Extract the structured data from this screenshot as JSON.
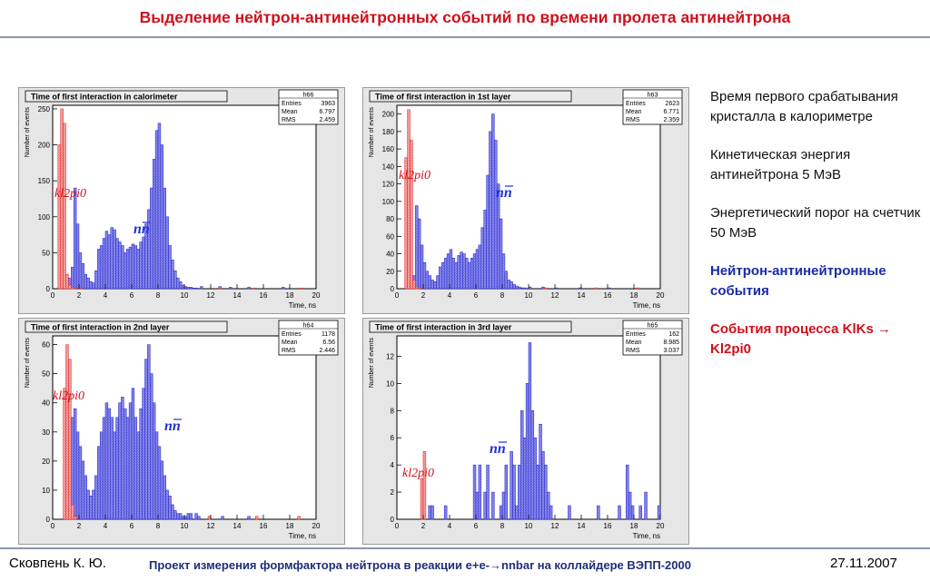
{
  "slide": {
    "title": "Выделение нейтрон-антинейтронных событий по времени пролета антинейтрона",
    "footer_author": "Сковпень К. Ю.",
    "footer_project": "Проект измерения формфактора нейтрона в реакции e+e-→nnbar на коллайдере ВЭПП-2000",
    "footer_date": "27.11.2007"
  },
  "colors": {
    "title_red": "#d0101c",
    "nn_blue": "#2030d8",
    "hist_blue_fill": "#8c8cf0",
    "hist_red_fill": "#f4a6a6",
    "panel_frame": "#c8c8c8"
  },
  "notes": [
    {
      "text": "Время первого срабатывания кристалла в калориметре",
      "style": "normal"
    },
    {
      "text": "Кинетическая энергия антинейтрона 5 МэВ",
      "style": "normal"
    },
    {
      "text": "Энергетический порог на счетчик 50 МэВ",
      "style": "normal"
    },
    {
      "text": "Нейтрон-антинейтронные события",
      "style": "blue"
    },
    {
      "text": "События процесса KlKs → Kl2pi0",
      "style": "red"
    }
  ],
  "chart_data": [
    {
      "type": "bar",
      "title": "Time of first interaction in calorimeter",
      "hist_name": "h66",
      "stats": [
        {
          "label": "Entries",
          "value": "3963"
        },
        {
          "label": "Mean",
          "value": "6.797"
        },
        {
          "label": "RMS",
          "value": "2.459"
        }
      ],
      "xlabel": "Time, ns",
      "ylabel": "Number of events",
      "xlim": [
        0,
        20
      ],
      "ylim": [
        0,
        255
      ],
      "yticks": [
        0,
        50,
        100,
        150,
        200,
        250
      ],
      "xticks": [
        0,
        2,
        4,
        6,
        8,
        10,
        12,
        14,
        16,
        18,
        20
      ],
      "bin_width": 0.2,
      "annotations": [
        {
          "text": "kl2pi0",
          "color": "red"
        },
        {
          "text": "nn",
          "color": "blue"
        }
      ],
      "series": [
        {
          "name": "nn",
          "color": "blue",
          "x_start": 1.0,
          "values": [
            5,
            15,
            30,
            140,
            90,
            50,
            35,
            20,
            15,
            10,
            8,
            25,
            55,
            60,
            70,
            80,
            75,
            85,
            82,
            70,
            65,
            60,
            50,
            55,
            58,
            62,
            60,
            55,
            65,
            72,
            90,
            110,
            140,
            180,
            220,
            230,
            200,
            140,
            100,
            60,
            40,
            25,
            15,
            10,
            5,
            3,
            2,
            2,
            1,
            1,
            0,
            3,
            0,
            0,
            0,
            0,
            0,
            0,
            3,
            0,
            0,
            0,
            2,
            0,
            0,
            0,
            0,
            0,
            0,
            2,
            0,
            0,
            0,
            0,
            0,
            0,
            0,
            0,
            0,
            0,
            0,
            0,
            2,
            0,
            0,
            0,
            0,
            0,
            0,
            0,
            0,
            0,
            0,
            0,
            0
          ]
        },
        {
          "name": "kl2pi0",
          "color": "red",
          "x_start": 0.4,
          "values": [
            200,
            250,
            230,
            20,
            5,
            2,
            1,
            0,
            1,
            0,
            0,
            0,
            0,
            0,
            0,
            0,
            0,
            0,
            0,
            0,
            0,
            0,
            0,
            0,
            0,
            0,
            0,
            0,
            0,
            0,
            0,
            0,
            0,
            0,
            0,
            0,
            0,
            0,
            0,
            0,
            0,
            0,
            0,
            0,
            0,
            0,
            0,
            0,
            0,
            0,
            0,
            0,
            0,
            0,
            0,
            0,
            0,
            0,
            0,
            0,
            0,
            1,
            0,
            0,
            0,
            0,
            0,
            0,
            0,
            0,
            0,
            0,
            0,
            0,
            1,
            0,
            0,
            0,
            0,
            0,
            0,
            0,
            0,
            0,
            0,
            0,
            0,
            0,
            0,
            0,
            0,
            0,
            1
          ]
        }
      ]
    },
    {
      "type": "bar",
      "title": "Time of first interaction in 1st layer",
      "hist_name": "h63",
      "stats": [
        {
          "label": "Entries",
          "value": "2623"
        },
        {
          "label": "Mean",
          "value": "6.771"
        },
        {
          "label": "RMS",
          "value": "2.359"
        }
      ],
      "xlabel": "Time, ns",
      "ylabel": "Number of events",
      "xlim": [
        0,
        20
      ],
      "ylim": [
        0,
        210
      ],
      "yticks": [
        0,
        20,
        40,
        60,
        80,
        100,
        120,
        140,
        160,
        180,
        200
      ],
      "xticks": [
        0,
        2,
        4,
        6,
        8,
        10,
        12,
        14,
        16,
        18,
        20
      ],
      "bin_width": 0.2,
      "annotations": [
        {
          "text": "kl2pi0",
          "color": "red"
        },
        {
          "text": "nn",
          "color": "blue"
        }
      ],
      "series": [
        {
          "name": "nn",
          "color": "blue",
          "x_start": 1.0,
          "values": [
            5,
            15,
            95,
            80,
            50,
            30,
            20,
            15,
            10,
            8,
            15,
            25,
            30,
            35,
            40,
            45,
            35,
            30,
            38,
            42,
            40,
            35,
            30,
            35,
            40,
            45,
            50,
            70,
            90,
            130,
            180,
            200,
            170,
            120,
            80,
            40,
            20,
            10,
            8,
            5,
            3,
            2,
            1,
            1,
            0,
            2,
            0,
            0,
            0,
            0,
            2,
            0,
            0,
            0,
            0,
            1,
            0,
            0,
            0,
            0,
            0,
            0,
            0,
            0,
            1,
            0,
            0,
            0,
            0,
            0,
            0,
            0,
            0,
            0,
            0,
            1,
            0,
            0,
            0,
            0,
            0,
            0,
            0,
            0,
            0,
            0,
            0,
            0,
            0,
            0,
            0,
            0,
            0,
            0,
            0
          ]
        },
        {
          "name": "kl2pi0",
          "color": "red",
          "x_start": 0.6,
          "values": [
            150,
            205,
            170,
            10,
            2,
            1,
            0,
            0,
            0,
            0,
            0,
            0,
            0,
            0,
            0,
            0,
            0,
            0,
            0,
            0,
            0,
            0,
            0,
            0,
            0,
            0,
            0,
            0,
            0,
            0,
            0,
            0,
            0,
            0,
            0,
            0,
            0,
            0,
            0,
            0,
            0,
            0,
            0,
            0,
            0,
            0,
            0,
            0,
            0,
            0,
            0,
            0,
            0,
            1,
            0,
            0,
            0,
            0,
            0,
            0,
            0,
            0,
            0,
            0,
            0,
            0,
            0,
            0,
            0,
            0,
            0,
            0,
            1,
            0,
            0,
            0,
            0,
            0,
            0,
            0,
            0,
            0,
            0,
            0,
            0,
            0,
            0,
            0,
            1
          ]
        }
      ]
    },
    {
      "type": "bar",
      "title": "Time of first interaction in 2nd layer",
      "hist_name": "h64",
      "stats": [
        {
          "label": "Entries",
          "value": "1178"
        },
        {
          "label": "Mean",
          "value": "6.56"
        },
        {
          "label": "RMS",
          "value": "2.446"
        }
      ],
      "xlabel": "Time, ns",
      "ylabel": "Number of events",
      "xlim": [
        0,
        20
      ],
      "ylim": [
        0,
        63
      ],
      "yticks": [
        0,
        10,
        20,
        30,
        40,
        50,
        60
      ],
      "xticks": [
        0,
        2,
        4,
        6,
        8,
        10,
        12,
        14,
        16,
        18,
        20
      ],
      "bin_width": 0.2,
      "annotations": [
        {
          "text": "kl2pi0",
          "color": "red"
        },
        {
          "text": "nn",
          "color": "blue"
        }
      ],
      "series": [
        {
          "name": "nn",
          "color": "blue",
          "x_start": 1.0,
          "values": [
            2,
            5,
            35,
            38,
            30,
            25,
            20,
            15,
            10,
            8,
            10,
            15,
            25,
            30,
            35,
            40,
            38,
            35,
            30,
            35,
            40,
            42,
            38,
            35,
            40,
            45,
            35,
            30,
            38,
            45,
            55,
            60,
            50,
            40,
            30,
            25,
            20,
            15,
            10,
            8,
            5,
            3,
            2,
            2,
            1,
            1,
            2,
            2,
            0,
            2,
            1,
            0,
            0,
            0,
            1,
            0,
            0,
            0,
            0,
            1,
            0,
            0,
            0,
            0,
            0,
            0,
            0,
            0,
            0,
            1,
            0,
            0,
            0,
            0,
            0,
            0,
            0,
            0,
            0,
            0,
            0,
            0,
            0,
            0,
            0,
            0,
            0,
            0,
            0,
            0,
            0
          ]
        },
        {
          "name": "kl2pi0",
          "color": "red",
          "x_start": 0.8,
          "values": [
            45,
            60,
            55,
            5,
            1,
            0,
            0,
            0,
            0,
            0,
            0,
            0,
            0,
            0,
            0,
            0,
            0,
            0,
            0,
            0,
            0,
            0,
            0,
            0,
            0,
            0,
            0,
            0,
            0,
            0,
            0,
            0,
            0,
            0,
            0,
            0,
            0,
            0,
            0,
            0,
            0,
            0,
            0,
            0,
            0,
            0,
            0,
            0,
            0,
            0,
            0,
            0,
            0,
            0,
            0,
            1,
            0,
            0,
            0,
            0,
            0,
            0,
            0,
            0,
            0,
            0,
            0,
            0,
            0,
            0,
            0,
            0,
            0,
            1,
            0,
            0,
            0,
            0,
            0,
            0,
            0,
            0,
            0,
            0,
            0,
            0,
            0,
            0,
            0,
            1
          ]
        }
      ]
    },
    {
      "type": "bar",
      "title": "Time of first interaction in 3rd layer",
      "hist_name": "h65",
      "stats": [
        {
          "label": "Entries",
          "value": "162"
        },
        {
          "label": "Mean",
          "value": "8.985"
        },
        {
          "label": "RMS",
          "value": "3.037"
        }
      ],
      "xlabel": "Time, ns",
      "ylabel": "Number of events",
      "xlim": [
        0,
        20
      ],
      "ylim": [
        0,
        13.5
      ],
      "yticks": [
        0,
        2,
        4,
        6,
        8,
        10,
        12
      ],
      "xticks": [
        0,
        2,
        4,
        6,
        8,
        10,
        12,
        14,
        16,
        18,
        20
      ],
      "bin_width": 0.2,
      "annotations": [
        {
          "text": "kl2pi0",
          "color": "red"
        },
        {
          "text": "nn",
          "color": "blue"
        }
      ],
      "series": [
        {
          "name": "nn",
          "color": "blue",
          "x_start": 2.0,
          "values": [
            0,
            0,
            1,
            1,
            0,
            0,
            0,
            0,
            1,
            0,
            0,
            0,
            0,
            0,
            0,
            0,
            0,
            0,
            0,
            4,
            2,
            4,
            0,
            2,
            4,
            0,
            2,
            0,
            0,
            1,
            2,
            4,
            0,
            5,
            4,
            1,
            4,
            8,
            6,
            10,
            13,
            8,
            6,
            4,
            7,
            5,
            4,
            2,
            1,
            0,
            0,
            0,
            0,
            0,
            0,
            1,
            0,
            0,
            0,
            0,
            0,
            0,
            0,
            0,
            0,
            0,
            1,
            0,
            0,
            0,
            0,
            0,
            0,
            0,
            1,
            0,
            0,
            4,
            2,
            1,
            0,
            0,
            1,
            0,
            2,
            0,
            0,
            0,
            0,
            1,
            0,
            0,
            0,
            0,
            0,
            0,
            0,
            0,
            0,
            0,
            0,
            0,
            0,
            0,
            0,
            0,
            0,
            0,
            0,
            0,
            0,
            0,
            0,
            0,
            0,
            0,
            0,
            0,
            0,
            0,
            0,
            0,
            0,
            0,
            0,
            0,
            0,
            0,
            0,
            0,
            0,
            0
          ]
        },
        {
          "name": "kl2pi0",
          "color": "red",
          "x_start": 1.6,
          "values": [
            0,
            3,
            5,
            0,
            0,
            0,
            0,
            0,
            0,
            0,
            0,
            0,
            0,
            0,
            0,
            0,
            0,
            0,
            0,
            0,
            0,
            0,
            0,
            0,
            0,
            0,
            0,
            0,
            0,
            0,
            0,
            0,
            0,
            0,
            0,
            0,
            0,
            0,
            0,
            0,
            0,
            0,
            0,
            0,
            0,
            0,
            0,
            0,
            0,
            0,
            0,
            0,
            0,
            0,
            0,
            0,
            0,
            0,
            0,
            0,
            0,
            0,
            0,
            0,
            0,
            0,
            0,
            0,
            0,
            0,
            0,
            0,
            0,
            0,
            0,
            0,
            0,
            0,
            0,
            0,
            0,
            0,
            0,
            0,
            0,
            0,
            0,
            0,
            0,
            0,
            0,
            0,
            0
          ]
        }
      ]
    }
  ]
}
